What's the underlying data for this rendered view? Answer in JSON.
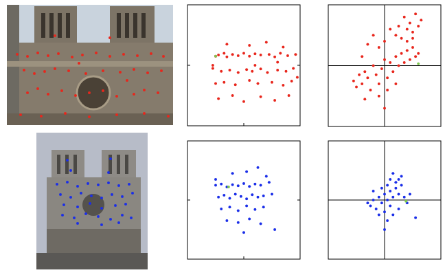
{
  "chart_data": [
    {
      "type": "image",
      "xlim": [
        0,
        242
      ],
      "ylim": [
        175,
        0
      ],
      "tick_labels": false,
      "series": [
        {
          "color": "#e8261c",
          "marker": "circle",
          "x": [
            15,
            30,
            45,
            60,
            75,
            95,
            110,
            130,
            150,
            170,
            190,
            210,
            228,
            25,
            40,
            55,
            70,
            90,
            115,
            140,
            165,
            185,
            205,
            225,
            30,
            45,
            60,
            80,
            100,
            120,
            140,
            160,
            185,
            200,
            220,
            20,
            50,
            85,
            120,
            160,
            200,
            235,
            70,
            150,
            105,
            175
          ],
          "values": [
            72,
            75,
            70,
            74,
            71,
            76,
            73,
            70,
            75,
            72,
            74,
            71,
            75,
            95,
            100,
            97,
            93,
            96,
            100,
            96,
            98,
            94,
            99,
            96,
            128,
            122,
            130,
            125,
            132,
            128,
            125,
            133,
            130,
            124,
            128,
            160,
            162,
            158,
            163,
            160,
            158,
            162,
            45,
            48,
            85,
            110
          ]
        }
      ]
    },
    {
      "type": "scatter",
      "xlim": [
        -1,
        1
      ],
      "ylim": [
        -1,
        1
      ],
      "xticks": [
        0
      ],
      "yticks": [
        0
      ],
      "grid": false,
      "tick_labels": false,
      "series": [
        {
          "color": "#e8261c",
          "marker": "circle",
          "x": [
            -0.5,
            -0.45,
            -0.35,
            -0.3,
            -0.2,
            -0.1,
            0.0,
            0.1,
            0.2,
            0.3,
            0.45,
            0.55,
            0.65,
            0.78,
            0.92,
            -0.55,
            -0.4,
            -0.25,
            -0.1,
            0.05,
            0.15,
            0.3,
            0.42,
            0.6,
            0.75,
            0.88,
            -0.5,
            -0.35,
            -0.15,
            0.1,
            0.25,
            0.5,
            0.7,
            0.85,
            -0.45,
            -0.2,
            0.0,
            0.3,
            0.55,
            0.8,
            -0.3,
            0.1,
            0.4,
            0.7,
            -0.55,
            0.2,
            0.6,
            0.95
          ],
          "values": [
            0.15,
            0.17,
            0.2,
            0.14,
            0.18,
            0.16,
            0.2,
            0.15,
            0.19,
            0.17,
            0.18,
            0.14,
            0.2,
            0.16,
            0.18,
            -0.05,
            -0.1,
            -0.08,
            -0.12,
            -0.07,
            -0.1,
            -0.06,
            -0.12,
            -0.08,
            -0.1,
            -0.05,
            -0.3,
            -0.28,
            -0.32,
            -0.25,
            -0.3,
            -0.28,
            -0.33,
            -0.26,
            -0.55,
            -0.5,
            -0.6,
            -0.52,
            -0.58,
            -0.5,
            0.35,
            0.33,
            0.38,
            0.3,
            0.0,
            0.0,
            0.05,
            -0.2
          ]
        },
        {
          "color": "#7ec850",
          "marker": "circle",
          "x": [
            -0.5
          ],
          "values": [
            0.15
          ]
        }
      ]
    },
    {
      "type": "scatter",
      "xlim": [
        -1,
        1
      ],
      "ylim": [
        -1,
        1
      ],
      "xticks": [
        0
      ],
      "yticks": [
        0
      ],
      "grid": true,
      "tick_labels": false,
      "series": [
        {
          "color": "#e8261c",
          "marker": "circle",
          "x": [
            -0.55,
            -0.5,
            -0.45,
            -0.4,
            -0.35,
            -0.3,
            -0.25,
            -0.2,
            -0.15,
            -0.1,
            -0.05,
            0.0,
            0.05,
            0.1,
            0.15,
            0.2,
            0.25,
            0.3,
            0.35,
            0.4,
            0.45,
            0.5,
            0.55,
            0.6,
            0.2,
            0.25,
            0.3,
            0.35,
            0.4,
            0.45,
            0.5,
            0.55,
            0.6,
            0.65,
            0.4,
            0.5,
            -0.3,
            -0.2,
            -0.1,
            0.0,
            -0.4,
            0.1,
            -0.1,
            0.05,
            0.0,
            0.2,
            -0.35
          ],
          "values": [
            -0.25,
            -0.35,
            -0.15,
            -0.3,
            -0.1,
            -0.2,
            -0.4,
            0.0,
            -0.15,
            -0.3,
            -0.05,
            0.1,
            -0.2,
            0.05,
            -0.1,
            0.15,
            0.0,
            0.2,
            0.05,
            0.25,
            0.1,
            0.3,
            0.15,
            0.2,
            0.5,
            0.65,
            0.45,
            0.8,
            0.6,
            0.7,
            0.55,
            0.85,
            0.65,
            0.75,
            0.4,
            0.45,
            0.35,
            0.5,
            0.3,
            0.4,
            0.15,
            0.6,
            -0.5,
            -0.4,
            -0.7,
            -0.3,
            -0.55
          ]
        },
        {
          "color": "#7ec850",
          "marker": "circle",
          "x": [
            0.6
          ],
          "values": [
            0.03
          ]
        }
      ]
    },
    {
      "type": "image",
      "xlim": [
        0,
        162
      ],
      "ylim": [
        199,
        0
      ],
      "tick_labels": false,
      "series": [
        {
          "color": "#1a2ee8",
          "marker": "circle",
          "x": [
            45,
            108,
            50,
            105,
            30,
            45,
            60,
            75,
            90,
            105,
            120,
            135,
            35,
            50,
            65,
            80,
            95,
            110,
            125,
            140,
            40,
            60,
            78,
            95,
            115,
            130,
            38,
            55,
            72,
            90,
            108,
            125,
            138,
            60,
            95,
            120
          ],
          "values": [
            40,
            38,
            55,
            58,
            75,
            72,
            78,
            74,
            76,
            73,
            77,
            75,
            90,
            94,
            88,
            92,
            95,
            90,
            93,
            88,
            105,
            108,
            103,
            110,
            106,
            104,
            120,
            124,
            118,
            122,
            126,
            120,
            124,
            132,
            134,
            131
          ]
        }
      ]
    },
    {
      "type": "scatter",
      "xlim": [
        -1,
        1
      ],
      "ylim": [
        -1,
        1
      ],
      "xticks": [
        0
      ],
      "yticks": [
        0
      ],
      "grid": false,
      "tick_labels": false,
      "series": [
        {
          "color": "#1a2ee8",
          "marker": "circle",
          "x": [
            -0.5,
            -0.4,
            -0.3,
            -0.2,
            -0.1,
            0.0,
            0.1,
            0.2,
            0.3,
            0.45,
            -0.45,
            -0.35,
            -0.25,
            -0.15,
            -0.05,
            0.05,
            0.15,
            0.25,
            0.35,
            0.5,
            -0.4,
            -0.25,
            -0.1,
            0.05,
            0.2,
            0.35,
            -0.3,
            -0.1,
            0.1,
            0.3,
            0.0,
            0.55,
            -0.2,
            0.05,
            0.25,
            -0.5,
            0.4
          ],
          "values": [
            0.25,
            0.27,
            0.22,
            0.26,
            0.24,
            0.28,
            0.23,
            0.27,
            0.25,
            0.3,
            0.05,
            0.08,
            0.03,
            0.1,
            0.06,
            0.02,
            0.09,
            0.05,
            0.07,
            0.1,
            -0.15,
            -0.12,
            -0.18,
            -0.1,
            -0.16,
            -0.12,
            -0.35,
            -0.38,
            -0.32,
            -0.4,
            -0.55,
            -0.5,
            0.45,
            0.48,
            0.55,
            0.35,
            0.4
          ]
        },
        {
          "color": "#7ec850",
          "marker": "circle",
          "x": [
            -0.27
          ],
          "values": [
            0.22
          ]
        }
      ]
    },
    {
      "type": "scatter",
      "xlim": [
        -1,
        1
      ],
      "ylim": [
        -1,
        1
      ],
      "xticks": [
        0
      ],
      "yticks": [
        0
      ],
      "grid": true,
      "tick_labels": false,
      "series": [
        {
          "color": "#1a2ee8",
          "marker": "circle",
          "x": [
            -0.25,
            -0.2,
            -0.15,
            -0.1,
            -0.05,
            0.0,
            0.05,
            0.1,
            0.15,
            0.2,
            0.25,
            0.3,
            0.1,
            0.15,
            0.2,
            0.05,
            -0.05,
            0.0,
            0.1,
            -0.1,
            0.05,
            0.0,
            0.25,
            0.35,
            0.4,
            0.45,
            -0.2,
            0.3,
            0.55,
            -0.3,
            0.15,
            0.25
          ],
          "values": [
            -0.1,
            0.0,
            -0.15,
            0.05,
            -0.05,
            0.1,
            0.0,
            0.15,
            0.05,
            0.2,
            0.1,
            0.25,
            0.35,
            0.45,
            0.3,
            0.25,
            0.2,
            -0.2,
            -0.1,
            -0.25,
            -0.35,
            -0.5,
            -0.15,
            0.05,
            -0.05,
            0.1,
            0.15,
            0.4,
            -0.3,
            -0.05,
            -0.25,
            0.35
          ]
        },
        {
          "color": "#7ec850",
          "marker": "circle",
          "x": [
            0.38
          ],
          "values": [
            -0.02
          ]
        }
      ]
    }
  ]
}
